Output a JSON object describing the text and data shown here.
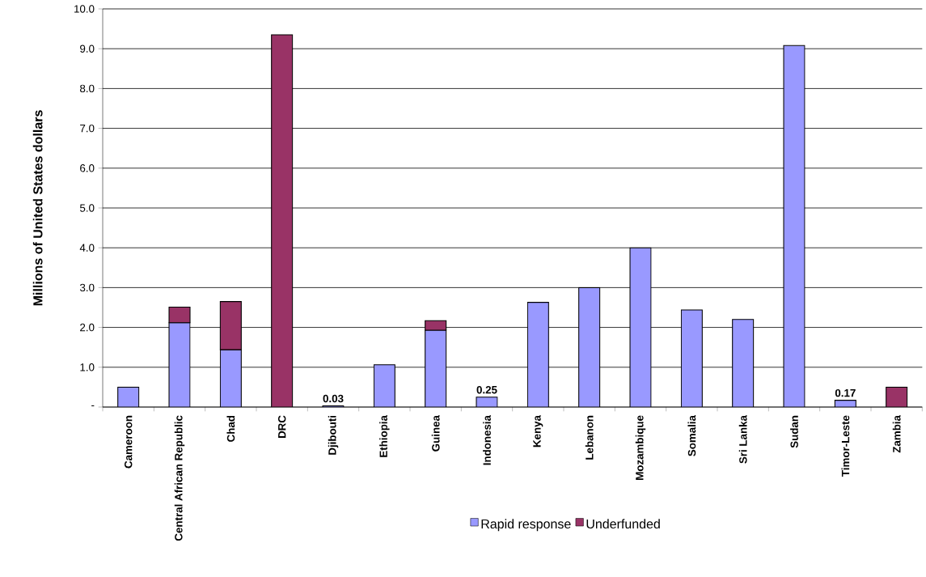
{
  "chart_data": {
    "type": "bar",
    "stacked": true,
    "ylabel": "Millions of United States dollars",
    "categories": [
      "Cameroon",
      "Central African Republic",
      "Chad",
      "DRC",
      "Djibouti",
      "Ethiopia",
      "Guinea",
      "Indonesia",
      "Kenya",
      "Lebanon",
      "Mozambique",
      "Somalia",
      "Sri Lanka",
      "Sudan",
      "Timor-Leste",
      "Zambia"
    ],
    "series": [
      {
        "name": "Rapid response",
        "color": "#9999ff",
        "values": [
          0.5,
          2.12,
          1.44,
          null,
          0.03,
          1.06,
          1.93,
          0.25,
          2.63,
          3.0,
          4.0,
          2.44,
          2.2,
          9.08,
          0.17,
          null
        ],
        "value_labels": [
          null,
          null,
          null,
          null,
          "0.03",
          null,
          null,
          "0.25",
          null,
          null,
          null,
          null,
          null,
          null,
          "0.17",
          null
        ]
      },
      {
        "name": "Underfunded",
        "color": "#993366",
        "values": [
          null,
          0.39,
          1.21,
          9.35,
          null,
          null,
          0.24,
          null,
          null,
          null,
          null,
          null,
          null,
          null,
          null,
          0.5
        ]
      }
    ],
    "ylim": [
      0,
      10
    ],
    "yticks": [
      {
        "value": 0,
        "label": "-"
      },
      {
        "value": 1,
        "label": "1.0"
      },
      {
        "value": 2,
        "label": "2.0"
      },
      {
        "value": 3,
        "label": "3.0"
      },
      {
        "value": 4,
        "label": "4.0"
      },
      {
        "value": 5,
        "label": "5.0"
      },
      {
        "value": 6,
        "label": "6.0"
      },
      {
        "value": 7,
        "label": "7.0"
      },
      {
        "value": 8,
        "label": "8.0"
      },
      {
        "value": 9,
        "label": "9.0"
      },
      {
        "value": 10,
        "label": "10.0"
      }
    ],
    "grid": "y",
    "legend": "bottom"
  }
}
